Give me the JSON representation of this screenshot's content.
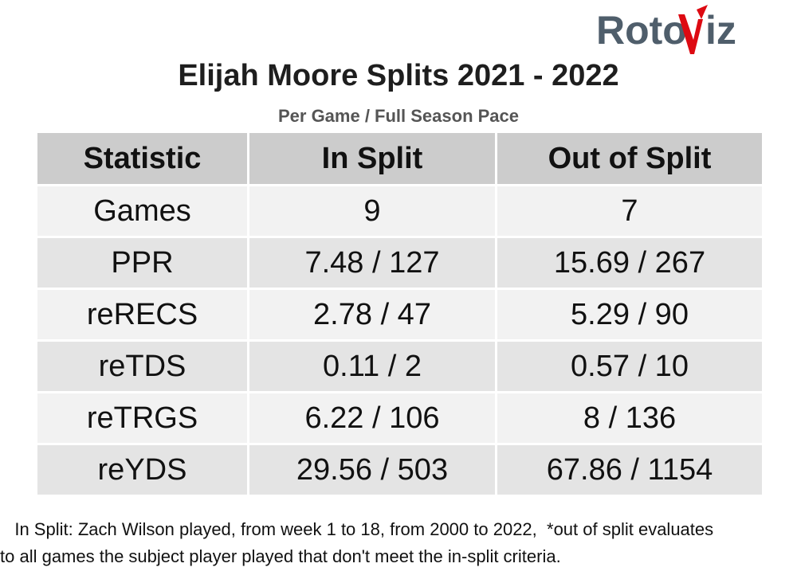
{
  "logo": {
    "text_left": "Roto",
    "text_right": "iz",
    "text_color": "#4f5e6b",
    "accent_color": "#dd0a12"
  },
  "header": {
    "title": "Elijah Moore Splits 2021 - 2022",
    "subtitle": "Per Game / Full Season Pace"
  },
  "chart_data": {
    "type": "table",
    "columns": [
      "Statistic",
      "In Split",
      "Out of Split"
    ],
    "rows": [
      [
        "Games",
        "9",
        "7"
      ],
      [
        "PPR",
        "7.48 / 127",
        "15.69 / 267"
      ],
      [
        "reRECS",
        "2.78 / 47",
        "5.29 / 90"
      ],
      [
        "reTDS",
        "0.11 / 2",
        "0.57 / 10"
      ],
      [
        "reTRGS",
        "6.22 / 106",
        "8 / 136"
      ],
      [
        "reYDS",
        "29.56 / 503",
        "67.86 / 1154"
      ]
    ]
  },
  "footnote": {
    "line1": "   In Split: Zach Wilson played, from week 1 to 18, from 2000 to 2022,  *out of split evaluates",
    "line2": "to all games the subject player played that don't meet the in-split criteria."
  },
  "colors": {
    "header_bg": "#cccccc",
    "row_light": "#f2f2f2",
    "row_dark": "#e4e4e4"
  }
}
